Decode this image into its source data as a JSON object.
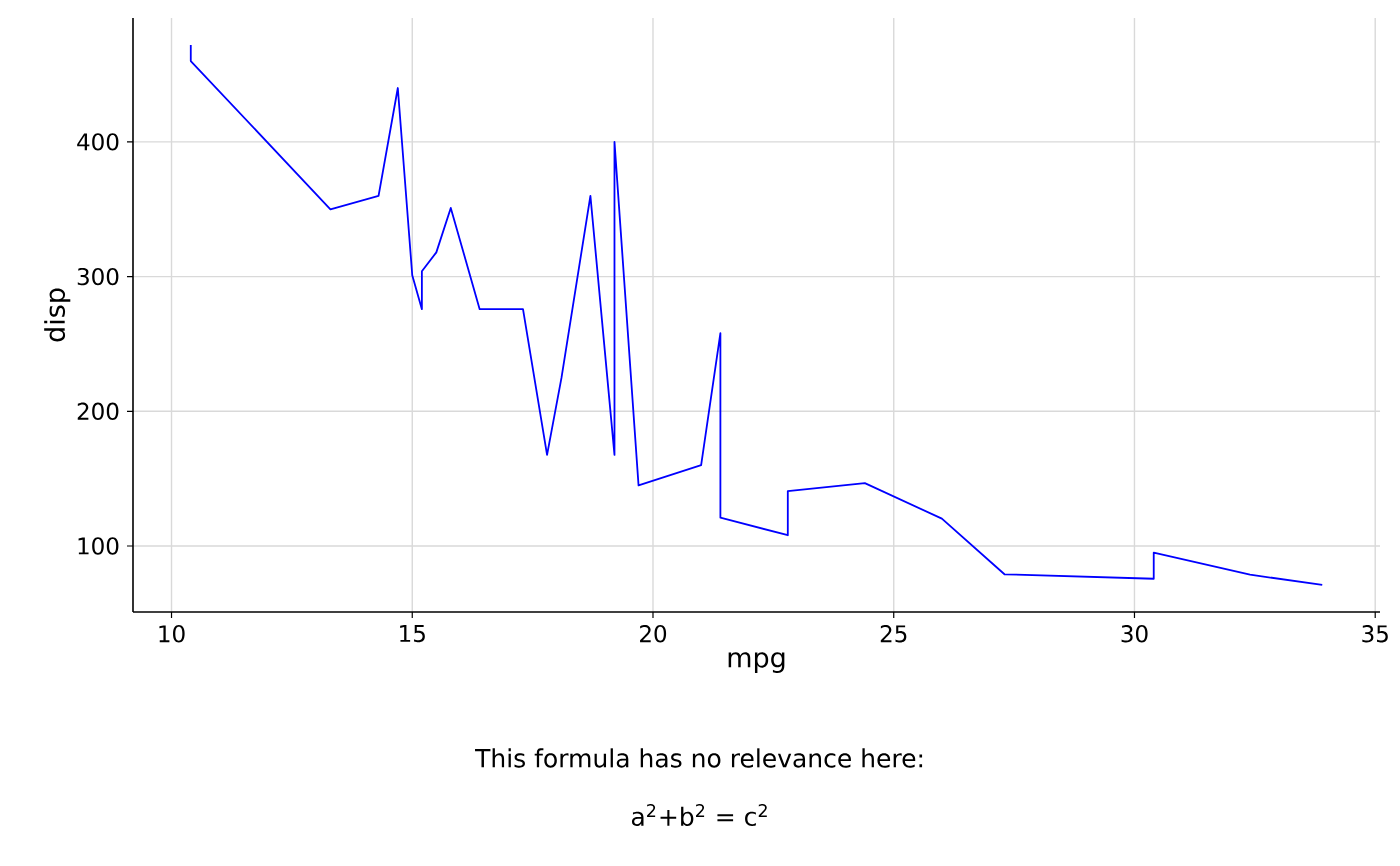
{
  "chart_data": {
    "type": "line",
    "xlabel": "mpg",
    "ylabel": "disp",
    "x": [
      10.4,
      10.4,
      13.3,
      14.3,
      14.7,
      15.0,
      15.2,
      15.2,
      15.5,
      15.8,
      16.4,
      17.3,
      17.8,
      18.1,
      18.7,
      19.2,
      19.2,
      19.7,
      21.0,
      21.0,
      21.4,
      21.4,
      21.5,
      22.8,
      22.8,
      24.4,
      26.0,
      27.3,
      30.4,
      30.4,
      32.4,
      33.9
    ],
    "series": [
      {
        "color": "#0000ff",
        "values": [
          472,
          460,
          350,
          360,
          440,
          301,
          275.8,
          304,
          318,
          351,
          275.8,
          275.8,
          167.6,
          225,
          360,
          167.6,
          400,
          145,
          160,
          160,
          258,
          121,
          120.1,
          108,
          140.8,
          146.7,
          120.3,
          79,
          75.7,
          95.1,
          78.7,
          71.1
        ]
      }
    ],
    "xlim": [
      9.2,
      35.1
    ],
    "ylim": [
      51,
      492
    ],
    "xticks": [
      10,
      15,
      20,
      25,
      30,
      35
    ],
    "yticks": [
      100,
      200,
      300,
      400
    ],
    "grid": true,
    "annotations": [
      "This formula has no relevance here:",
      "a$^{2}$+b$^{2}$ = c$^{2}$"
    ]
  }
}
